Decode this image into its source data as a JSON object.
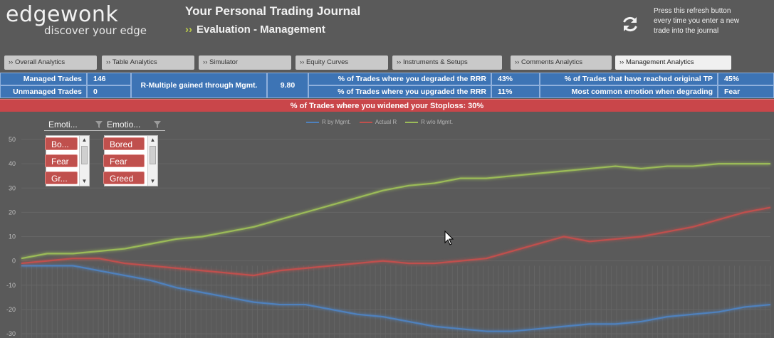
{
  "header": {
    "logo_name": "edgewonk",
    "logo_tagline": "discover  your edge",
    "title": "Your Personal Trading Journal",
    "subtitle_arrows": "››",
    "subtitle": "Evaluation  - Management",
    "refresh_note": "Press this refresh button every time you enter a new trade into the journal"
  },
  "tabs": [
    {
      "label": "›› Overall Analytics",
      "active": false
    },
    {
      "label": "›› Table Analytics",
      "active": false
    },
    {
      "label": "›› Simulator",
      "active": false
    },
    {
      "label": "›› Equity Curves",
      "active": false
    },
    {
      "label": "›› Instruments & Setups",
      "active": false
    },
    {
      "label": "›› Comments Analytics",
      "active": false
    },
    {
      "label": "›› Management Analytics",
      "active": true
    }
  ],
  "stats": {
    "managed_label": "Managed Trades",
    "managed_value": "146",
    "unmanaged_label": "Unmanaged Trades",
    "unmanaged_value": "0",
    "rmult_label": "R-Multiple gained through Mgmt.",
    "rmult_value": "9.80",
    "degraded_label": "% of Trades where you degraded the RRR",
    "degraded_value": "43%",
    "upgraded_label": "% of Trades where you upgraded the RRR",
    "upgraded_value": "11%",
    "reached_tp_label": "% of Trades that have reached original TP",
    "reached_tp_value": "45%",
    "emotion_label": "Most common emotion when degrading",
    "emotion_value": "Fear",
    "alert": "% of Trades where you widened your Stoploss: 30%"
  },
  "slicers": [
    {
      "header": "Emoti...",
      "items": [
        "Bo...",
        "Fear",
        "Gr..."
      ]
    },
    {
      "header": "Emotio...",
      "items": [
        "Bored",
        "Fear",
        "Greed"
      ]
    }
  ],
  "colors": {
    "panel": "#5a5a5a",
    "stat_blue": "#3d74b5",
    "alert_red": "#c9464a",
    "series_blue": "#4f81bd",
    "series_red": "#c0504d",
    "series_green": "#9bbb59"
  },
  "chart_data": {
    "type": "line",
    "ylim": [
      -30,
      50
    ],
    "yticks": [
      "50",
      "40",
      "30",
      "20",
      "10",
      "0",
      "-10",
      "-20",
      "-30"
    ],
    "grid": true,
    "legend_position": "top-center",
    "x": [
      0,
      5,
      10,
      15,
      20,
      25,
      30,
      35,
      40,
      45,
      50,
      55,
      60,
      65,
      70,
      75,
      80,
      85,
      90,
      95,
      100,
      105,
      110,
      115,
      120,
      125,
      130,
      135,
      140,
      145
    ],
    "series": [
      {
        "name": "R by Mgmt.",
        "color": "#4f81bd",
        "values": [
          -2,
          -2,
          -2,
          -4,
          -6,
          -8,
          -11,
          -13,
          -15,
          -17,
          -18,
          -18,
          -20,
          -22,
          -23,
          -25,
          -27,
          -28,
          -29,
          -29,
          -28,
          -27,
          -26,
          -26,
          -25,
          -23,
          -22,
          -21,
          -19,
          -18
        ]
      },
      {
        "name": "Actual R",
        "color": "#c0504d",
        "values": [
          -1,
          0,
          1,
          1,
          -1,
          -2,
          -3,
          -4,
          -5,
          -6,
          -4,
          -3,
          -2,
          -1,
          0,
          -1,
          -1,
          0,
          1,
          4,
          7,
          10,
          8,
          9,
          10,
          12,
          14,
          17,
          20,
          22
        ]
      },
      {
        "name": "R w/o Mgmt.",
        "color": "#9bbb59",
        "values": [
          1,
          3,
          3,
          4,
          5,
          7,
          9,
          10,
          12,
          14,
          17,
          20,
          23,
          26,
          29,
          31,
          32,
          34,
          34,
          35,
          36,
          37,
          38,
          39,
          38,
          39,
          39,
          40,
          40,
          40
        ]
      }
    ]
  }
}
